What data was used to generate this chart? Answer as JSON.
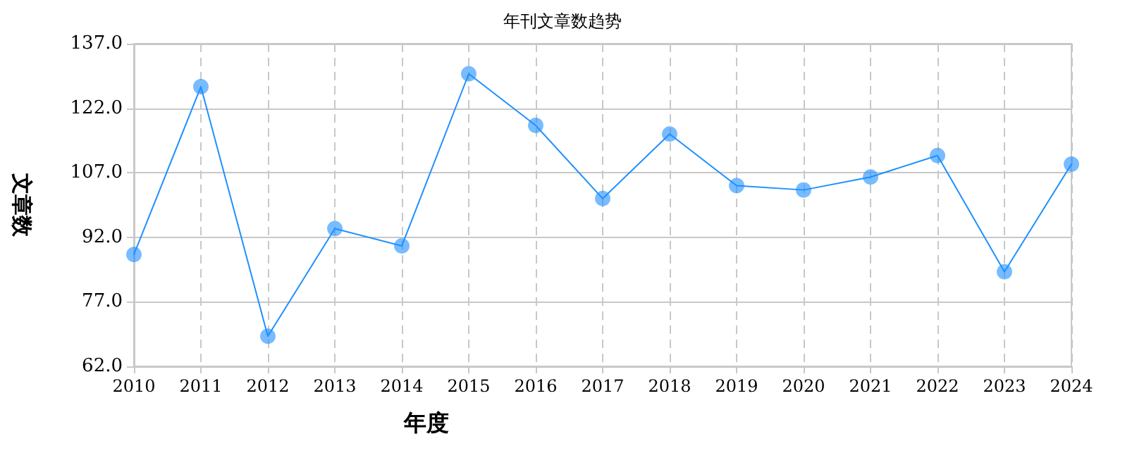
{
  "chart_data": {
    "type": "line",
    "title": "年刊文章数趋势",
    "xlabel": "年度",
    "ylabel": "文章数",
    "categories": [
      "2010",
      "2011",
      "2012",
      "2013",
      "2014",
      "2015",
      "2016",
      "2017",
      "2018",
      "2019",
      "2020",
      "2021",
      "2022",
      "2023",
      "2024"
    ],
    "series": [
      {
        "color": "#1e90ff",
        "values": [
          88,
          127,
          69,
          94,
          90,
          130,
          118,
          101,
          116,
          104,
          103,
          106,
          111,
          84,
          109
        ]
      }
    ],
    "ylim": [
      62,
      137
    ],
    "yticks": [
      {
        "value": 62,
        "label": "62.0"
      },
      {
        "value": 77,
        "label": "77.0"
      },
      {
        "value": 92,
        "label": "92.0"
      },
      {
        "value": 107,
        "label": "107.0"
      },
      {
        "value": 122,
        "label": "122.0"
      },
      {
        "value": 137,
        "label": "137.0"
      }
    ],
    "grid": true,
    "marker": "circle",
    "line_style": "solid"
  }
}
